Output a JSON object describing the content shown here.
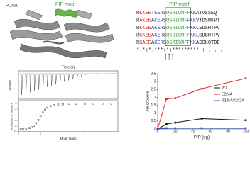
{
  "protein": {
    "label": "PCNA",
    "motif_label": "PIP motif"
  },
  "alignment": {
    "header": "PIP motif",
    "motif_color": "#3a9b3a",
    "rows": [
      {
        "segments": [
          {
            "text": "R",
            "color": "#222"
          },
          {
            "text": "KKEE",
            "color": "#d42020"
          },
          {
            "text": "T",
            "color": "#222"
          },
          {
            "text": "KER",
            "color": "#2040c0"
          },
          {
            "text": "S",
            "color": "#222"
          },
          {
            "text": "QSRIGNFF",
            "color": "#3a9b3a"
          },
          {
            "text": "KK",
            "color": "#2040c0"
          },
          {
            "text": "ATVSSEQ",
            "color": "#222"
          }
        ]
      },
      {
        "segments": [
          {
            "text": "R",
            "color": "#222"
          },
          {
            "text": "AKEE",
            "color": "#d42020"
          },
          {
            "text": "A",
            "color": "#222"
          },
          {
            "text": "KER",
            "color": "#2040c0"
          },
          {
            "text": "S",
            "color": "#222"
          },
          {
            "text": "QSRIGNFF",
            "color": "#3a9b3a"
          },
          {
            "text": "KK",
            "color": "#2040c0"
          },
          {
            "text": "VTDSNKPT",
            "color": "#222"
          }
        ]
      },
      {
        "segments": [
          {
            "text": "R",
            "color": "#222"
          },
          {
            "text": "KKEE",
            "color": "#d42020"
          },
          {
            "text": "A",
            "color": "#222"
          },
          {
            "text": "KER",
            "color": "#2040c0"
          },
          {
            "text": "S",
            "color": "#222"
          },
          {
            "text": "QSRIGNFF",
            "color": "#3a9b3a"
          },
          {
            "text": "KK",
            "color": "#2040c0"
          },
          {
            "text": "LSDSHTPV",
            "color": "#222"
          }
        ]
      },
      {
        "segments": [
          {
            "text": "R",
            "color": "#222"
          },
          {
            "text": "KKEE",
            "color": "#d42020"
          },
          {
            "text": "A",
            "color": "#222"
          },
          {
            "text": "KER",
            "color": "#2040c0"
          },
          {
            "text": "S",
            "color": "#222"
          },
          {
            "text": "QSRIGNFF",
            "color": "#3a9b3a"
          },
          {
            "text": "KK",
            "color": "#2040c0"
          },
          {
            "text": "LSDSHTPV",
            "color": "#222"
          }
        ]
      },
      {
        "segments": [
          {
            "text": "R",
            "color": "#222"
          },
          {
            "text": "KAEE",
            "color": "#d42020"
          },
          {
            "text": "A",
            "color": "#222"
          },
          {
            "text": "KER",
            "color": "#2040c0"
          },
          {
            "text": "S",
            "color": "#222"
          },
          {
            "text": "QSRIGNFF",
            "color": "#3a9b3a"
          },
          {
            "text": "KK",
            "color": "#2040c0"
          },
          {
            "text": "ASSKQTDE",
            "color": "#222"
          }
        ]
      }
    ],
    "conservation": "*.*:*.***:*:********* : . . .",
    "arrows": "↑↑↑"
  },
  "itc": {
    "top_xlabel": "Time (s)",
    "top_ylabel": "µcal/sec"
  },
  "chart_data": [
    {
      "type": "scatter",
      "x_label": "Molar Ratio",
      "y_label": "kcal/mole of injectant",
      "x": [
        0.1,
        0.2,
        0.35,
        0.5,
        0.6,
        0.7,
        0.8,
        0.9,
        1.0,
        1.1,
        1.2,
        1.3,
        1.45,
        1.6,
        1.8,
        2.0,
        2.3,
        2.6,
        3.0,
        3.4,
        3.8,
        4.2
      ],
      "values": [
        -9.0,
        -9.0,
        -8.9,
        -8.7,
        -8.4,
        -7.9,
        -7.0,
        -5.8,
        -4.5,
        -3.2,
        -2.2,
        -1.5,
        -0.9,
        -0.6,
        -0.4,
        -0.3,
        -0.2,
        -0.15,
        -0.1,
        -0.1,
        -0.05,
        -0.05
      ],
      "color": "#222",
      "xlim": [
        0,
        4.5
      ],
      "xticks": [
        0,
        1,
        2,
        3,
        4
      ],
      "ylim": [
        -10,
        1
      ],
      "yticks": [
        0,
        -2,
        -4,
        -6,
        -8,
        -10
      ]
    },
    {
      "type": "line",
      "x_label": "PIP (ug)",
      "y_label": "Absorbance",
      "x": [
        0,
        10,
        20,
        50,
        100
      ],
      "series": [
        {
          "name": "WT",
          "color": "#111111",
          "values": [
            0,
            0.3,
            0.4,
            0.65,
            0.55
          ]
        },
        {
          "name": "E224A",
          "color": "#e02020",
          "values": [
            0,
            1.9,
            1.95,
            2.55,
            3.2
          ]
        },
        {
          "name": "R225A/K223A",
          "color": "#2050d0",
          "values": [
            0,
            0.05,
            0.05,
            0.05,
            0.05
          ]
        }
      ],
      "xlim": [
        0,
        100
      ],
      "xticks": [
        0,
        20,
        40,
        60,
        80,
        100
      ],
      "ylim": [
        0,
        3.5
      ],
      "yticks": [
        0,
        0.5,
        1,
        1.5,
        2,
        2.5,
        3,
        3.5
      ],
      "legend": "right"
    }
  ]
}
